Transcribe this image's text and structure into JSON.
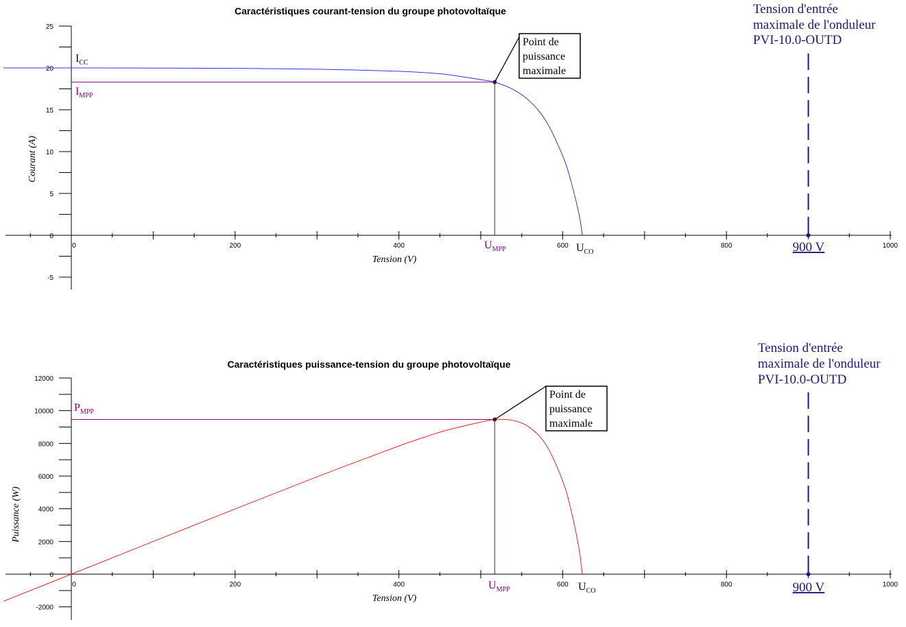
{
  "chart_data": [
    {
      "type": "line",
      "title": "Caractéristiques courant-tension du groupe photovoltaïque",
      "xlabel": "Tension (V)",
      "ylabel": "Courant (A)",
      "xlim": [
        -83,
        1000
      ],
      "ylim": [
        -6.5,
        25
      ],
      "xticks": [
        0,
        200,
        400,
        600,
        800,
        1000
      ],
      "yticks": [
        -5,
        0,
        5,
        10,
        15,
        20,
        25
      ],
      "series": [
        {
          "color": "#3333ee",
          "x": [
            -83,
            0,
            100,
            200,
            300,
            400,
            450,
            480,
            500,
            517,
            540,
            560,
            580,
            600,
            610,
            620,
            624
          ],
          "y": [
            20.0,
            20.0,
            19.98,
            19.95,
            19.85,
            19.6,
            19.3,
            18.9,
            18.6,
            18.3,
            17.4,
            16.0,
            13.6,
            9.5,
            6.5,
            2.5,
            0
          ]
        }
      ],
      "mpp": {
        "x": 517,
        "y": 18.3
      },
      "inverter_v": 900,
      "labels": {
        "isc": "I",
        "isc_sub": "CC",
        "impp": "I",
        "impp_sub": "MPP",
        "umpp": "U",
        "umpp_sub": "MPP",
        "uco": "U",
        "uco_sub": "CO",
        "callout": [
          "Point de",
          "puissance",
          "maximale"
        ],
        "inverter_text": [
          "Tension d'entrée",
          "maximale de l'onduleur",
          "PVI-10.0-OUTD"
        ],
        "inverter_value": "900 V"
      }
    },
    {
      "type": "line",
      "title": "Caractéristiques puissance-tension du groupe photovoltaïque",
      "xlabel": "Tension (V)",
      "ylabel": "Puissance (W)",
      "xlim": [
        -83,
        1000
      ],
      "ylim": [
        -2600,
        12000
      ],
      "xticks": [
        0,
        200,
        400,
        600,
        800,
        1000
      ],
      "yticks": [
        -2000,
        0,
        2000,
        4000,
        6000,
        8000,
        10000,
        12000
      ],
      "series": [
        {
          "color": "#ee2222",
          "x": [
            -83,
            0,
            100,
            200,
            300,
            400,
            450,
            480,
            500,
            517,
            540,
            560,
            580,
            600,
            610,
            620,
            624
          ],
          "y": [
            -1660,
            0,
            2000,
            3990,
            5955,
            7840,
            8685,
            9072,
            9300,
            9461,
            9396,
            8960,
            7888,
            5700,
            3965,
            1550,
            0
          ]
        }
      ],
      "mpp": {
        "x": 517,
        "y": 9461
      },
      "inverter_v": 900,
      "labels": {
        "pmpp": "P",
        "pmpp_sub": "MPP",
        "umpp": "U",
        "umpp_sub": "MPP",
        "uco": "U",
        "uco_sub": "CO",
        "callout": [
          "Point de",
          "puissance",
          "maximale"
        ],
        "inverter_text": [
          "Tension d'entrée",
          "maximale de l'onduleur",
          "PVI-10.0-OUTD"
        ],
        "inverter_value": "900 V"
      }
    }
  ]
}
